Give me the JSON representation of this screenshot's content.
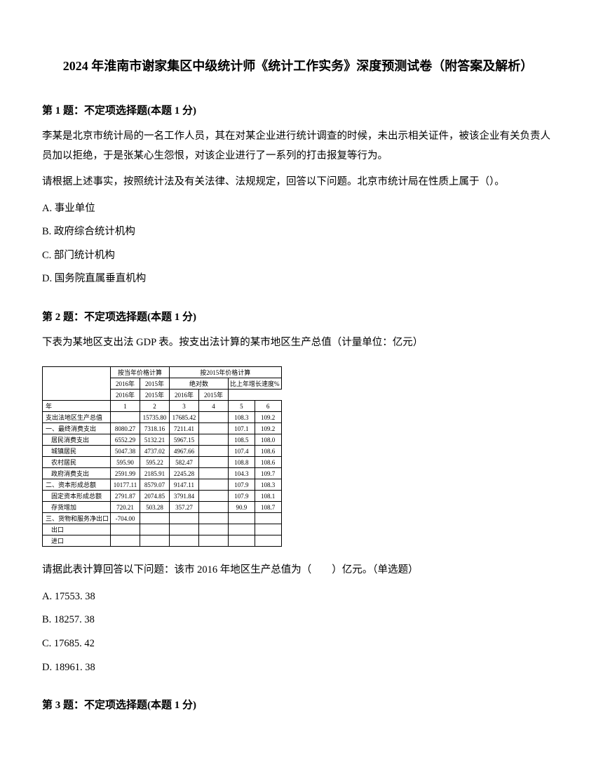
{
  "title": "2024 年淮南市谢家集区中级统计师《统计工作实务》深度预测试卷（附答案及解析）",
  "q1": {
    "header": "第 1 题：不定项选择题(本题 1 分)",
    "p1": "李某是北京市统计局的一名工作人员，其在对某企业进行统计调查的时候，未出示相关证件，被该企业有关负责人员加以拒绝，于是张某心生怨恨，对该企业进行了一系列的打击报复等行为。",
    "p2": "请根据上述事实，按照统计法及有关法律、法规规定，回答以下问题。北京市统计局在性质上属于（）。",
    "a": "A. 事业单位",
    "b": "B. 政府综合统计机构",
    "c": "C. 部门统计机构",
    "d": "D. 国务院直属垂直机构"
  },
  "q2": {
    "header": "第 2 题：不定项选择题(本题 1 分)",
    "p1": "下表为某地区支出法 GDP 表。按支出法计算的某市地区生产总值（计量单位：亿元）",
    "p2": "请据此表计算回答以下问题：该市 2016 年地区生产总值为（　　）亿元。（单选题）",
    "a": "A. 17553. 38",
    "b": "B. 18257. 38",
    "c": "C. 17685. 42",
    "d": "D. 18961. 38"
  },
  "q3": {
    "header": "第 3 题：不定项选择题(本题 1 分)"
  },
  "table": {
    "header_group1": "按当年价格计算",
    "header_group2": "按2015年价格计算",
    "sub_h1": "绝对数",
    "sub_h2": "比上年增长速度%",
    "years": [
      "2016年",
      "2015年",
      "2016年",
      "2015年",
      "2016年",
      "2015年"
    ],
    "nums": [
      "1",
      "2",
      "3",
      "4",
      "5",
      "6"
    ],
    "row_label": "年",
    "rows": [
      {
        "label": "支出法地区生产总值",
        "v": [
          "",
          "15735.80",
          "17685.42",
          "",
          "108.3",
          "109.2"
        ]
      },
      {
        "label": "一、最终消费支出",
        "v": [
          "8080.27",
          "7318.16",
          "7211.41",
          "",
          "107.1",
          "109.2"
        ]
      },
      {
        "label": "居民消费支出",
        "v": [
          "6552.29",
          "5132.21",
          "5967.15",
          "",
          "108.5",
          "108.0"
        ],
        "indent": true
      },
      {
        "label": "城镇居民",
        "v": [
          "5047.38",
          "4737.02",
          "4967.66",
          "",
          "107.4",
          "108.6"
        ],
        "indent": true
      },
      {
        "label": "农村居民",
        "v": [
          "595.90",
          "595.22",
          "582.47",
          "",
          "108.8",
          "108.6"
        ],
        "indent": true
      },
      {
        "label": "政府消费支出",
        "v": [
          "2591.99",
          "2185.91",
          "2245.28",
          "",
          "104.3",
          "109.7"
        ],
        "indent": true
      },
      {
        "label": "二、资本形成总额",
        "v": [
          "10177.11",
          "8579.07",
          "9147.11",
          "",
          "107.9",
          "108.3"
        ]
      },
      {
        "label": "固定资本形成总额",
        "v": [
          "2791.87",
          "2074.85",
          "3791.84",
          "",
          "107.9",
          "108.1"
        ],
        "indent": true
      },
      {
        "label": "存货增加",
        "v": [
          "720.21",
          "503.28",
          "357.27",
          "",
          "90.9",
          "108.7"
        ],
        "indent": true
      },
      {
        "label": "三、货物和服务净出口",
        "v": [
          "-704.00",
          "",
          "",
          "",
          "",
          ""
        ]
      },
      {
        "label": "出口",
        "v": [
          "",
          "",
          "",
          "",
          "",
          ""
        ],
        "indent": true
      },
      {
        "label": "进口",
        "v": [
          "",
          "",
          "",
          "",
          "",
          ""
        ],
        "indent": true
      }
    ]
  }
}
